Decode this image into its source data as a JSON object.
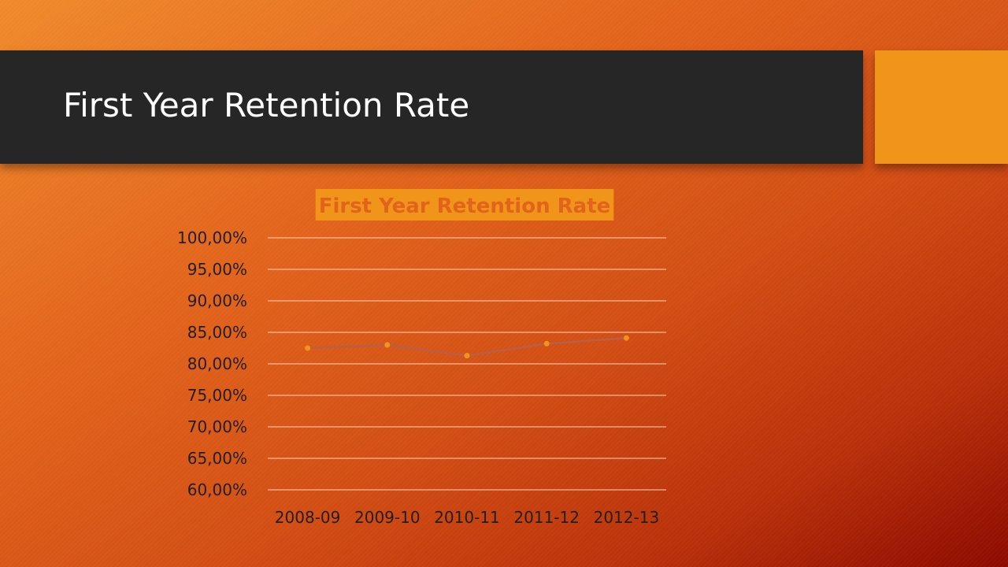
{
  "slide": {
    "title": "First Year Retention Rate"
  },
  "colors": {
    "title_bar": "#262626",
    "accent": "#f0951a",
    "chart_title_bg": "#f0951a",
    "chart_title_text": "#e2641c",
    "series_line": "#b85f48",
    "series_marker": "#f0951a",
    "gridline": "#f3d3c0",
    "axis_text": "#1f1f1f"
  },
  "chart_data": {
    "type": "line",
    "title": "First Year Retention Rate",
    "categories": [
      "2008-09",
      "2009-10",
      "2010-11",
      "2011-12",
      "2012-13"
    ],
    "series": [
      {
        "values": [
          82.5,
          83.0,
          81.3,
          83.2,
          84.1
        ]
      }
    ],
    "y_ticks": [
      "60,00%",
      "65,00%",
      "70,00%",
      "75,00%",
      "80,00%",
      "85,00%",
      "90,00%",
      "95,00%",
      "100,00%"
    ],
    "ylim": [
      60,
      100
    ],
    "y_unit": "%",
    "grid": true,
    "legend": "none",
    "markers": "circle"
  }
}
